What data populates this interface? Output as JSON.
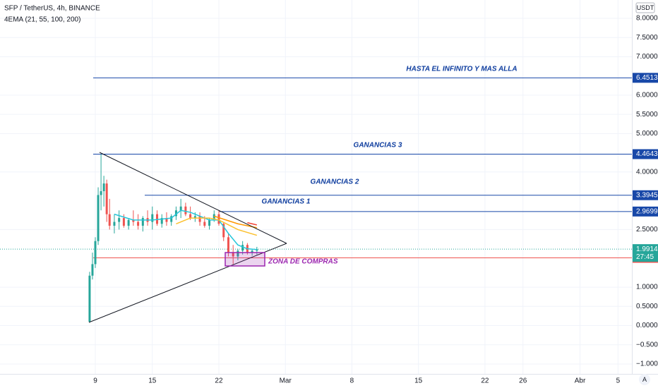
{
  "chart_data": {
    "type": "candlestick",
    "title": "SFP / TetherUS, 4h, BINANCE",
    "subtitle": "4EMA (21, 55, 100, 200)",
    "currency": "USDT",
    "xlim": [
      -10.03,
      56.46
    ],
    "xticks": [
      {
        "value": 0,
        "label": "9"
      },
      {
        "value": 6,
        "label": "15"
      },
      {
        "value": 13,
        "label": "22"
      },
      {
        "value": 20,
        "label": "Mar"
      },
      {
        "value": 27,
        "label": "8"
      },
      {
        "value": 34,
        "label": "15"
      },
      {
        "value": 41,
        "label": "22"
      },
      {
        "value": 45,
        "label": "26"
      },
      {
        "value": 51,
        "label": "Abr"
      },
      {
        "value": 55,
        "label": "5"
      }
    ],
    "ylim": [
      -1.258,
      8.478
    ],
    "yticks": [
      {
        "value": 8,
        "label": "8.0000"
      },
      {
        "value": 7.5,
        "label": "7.5000"
      },
      {
        "value": 7,
        "label": "7.0000"
      },
      {
        "value": 6,
        "label": "6.0000"
      },
      {
        "value": 5.5,
        "label": "5.5000"
      },
      {
        "value": 5,
        "label": "5.0000"
      },
      {
        "value": 4,
        "label": "4.0000"
      },
      {
        "value": 2.5,
        "label": "2.5000"
      },
      {
        "value": 1,
        "label": "1.0000"
      },
      {
        "value": 0.5,
        "label": "0.5000"
      },
      {
        "value": 0,
        "label": "0.0000"
      },
      {
        "value": -0.5,
        "label": "−0.5000"
      },
      {
        "value": -1,
        "label": "−1.0000"
      }
    ],
    "grid": true,
    "up_color": "#26a69a",
    "down_color": "#ef5350",
    "candles": {
      "x": [
        -0.6,
        -0.3,
        0,
        0.3,
        0.6,
        0.9,
        1.2,
        1.5,
        2,
        2.5,
        3,
        3.5,
        4,
        4.5,
        5,
        5.5,
        6,
        6.5,
        7,
        7.5,
        8,
        8.5,
        9,
        9.5,
        10,
        10.5,
        11,
        11.5,
        12,
        12.5,
        13,
        13.5,
        14,
        14.5,
        15,
        15.5,
        16,
        16.5,
        17
      ],
      "open": [
        0.1,
        1.3,
        1.6,
        2.2,
        3.4,
        3.5,
        3.7,
        2.9,
        2.6,
        2.7,
        2.8,
        2.6,
        2.75,
        2.7,
        2.6,
        2.8,
        2.7,
        2.9,
        2.65,
        2.8,
        2.7,
        2.85,
        3.0,
        3.1,
        2.9,
        2.8,
        2.85,
        2.7,
        2.6,
        2.75,
        2.9,
        2.65,
        2.3,
        1.9,
        1.8,
        1.95,
        2.1,
        1.9,
        1.95
      ],
      "high": [
        1.4,
        1.9,
        2.3,
        3.6,
        4.46,
        3.9,
        3.8,
        3.3,
        2.9,
        3.0,
        2.9,
        2.8,
        3.0,
        2.9,
        2.85,
        3.0,
        3.1,
        3.0,
        2.9,
        2.95,
        2.9,
        3.1,
        3.3,
        3.2,
        3.1,
        2.95,
        2.95,
        2.85,
        2.8,
        3.0,
        3.0,
        2.7,
        2.4,
        2.1,
        2.0,
        2.2,
        2.15,
        2.0,
        2.05
      ],
      "low": [
        0.08,
        1.2,
        1.5,
        2.1,
        3.0,
        3.1,
        2.7,
        2.5,
        2.4,
        2.5,
        2.55,
        2.5,
        2.6,
        2.5,
        2.45,
        2.6,
        2.5,
        2.6,
        2.55,
        2.6,
        2.6,
        2.75,
        2.8,
        2.85,
        2.75,
        2.7,
        2.6,
        2.55,
        2.5,
        2.7,
        2.6,
        2.2,
        1.8,
        1.6,
        1.7,
        1.85,
        1.85,
        1.82,
        1.85
      ],
      "close": [
        1.3,
        1.6,
        2.2,
        3.4,
        3.5,
        3.7,
        2.9,
        2.6,
        2.7,
        2.8,
        2.6,
        2.75,
        2.7,
        2.6,
        2.8,
        2.7,
        2.9,
        2.65,
        2.8,
        2.7,
        2.85,
        3.0,
        3.1,
        2.9,
        2.8,
        2.85,
        2.7,
        2.6,
        2.75,
        2.9,
        2.65,
        2.3,
        1.9,
        1.8,
        1.95,
        2.1,
        1.9,
        1.95,
        1.99
      ]
    },
    "series": [
      {
        "color": "#26c6da",
        "x": [
          2,
          4,
          6,
          8,
          9,
          10,
          12,
          13,
          14,
          15,
          16,
          17
        ],
        "values": [
          2.9,
          2.75,
          2.75,
          2.8,
          3.0,
          2.95,
          2.75,
          2.75,
          2.4,
          2.1,
          2.0,
          1.98
        ]
      },
      {
        "color": "#fbc02d",
        "x": [
          8.5,
          10,
          12,
          13,
          15,
          17
        ],
        "values": [
          2.65,
          2.8,
          2.8,
          2.75,
          2.5,
          2.35
        ]
      },
      {
        "color": "#ff9800",
        "x": [
          12.5,
          15,
          17
        ],
        "values": [
          2.85,
          2.65,
          2.55
        ]
      },
      {
        "color": "#f44336",
        "x": [
          16,
          17
        ],
        "values": [
          2.68,
          2.62
        ]
      }
    ],
    "levels": [
      {
        "value": 6.4513,
        "text": "HASTA EL INFINITO Y MAS ALLA"
      },
      {
        "value": 4.4643,
        "text": "GANANCIAS 3"
      },
      {
        "value": 3.3945,
        "text": "GANANCIAS 2"
      },
      {
        "value": 2.9699,
        "text": "GANANCIAS 1"
      }
    ],
    "level_color": "#1848a8",
    "current_price": {
      "value": 1.9914,
      "countdown": "27:45"
    },
    "zone": {
      "value": 1.7642,
      "text": "ZONA DE COMPRAS"
    }
  }
}
